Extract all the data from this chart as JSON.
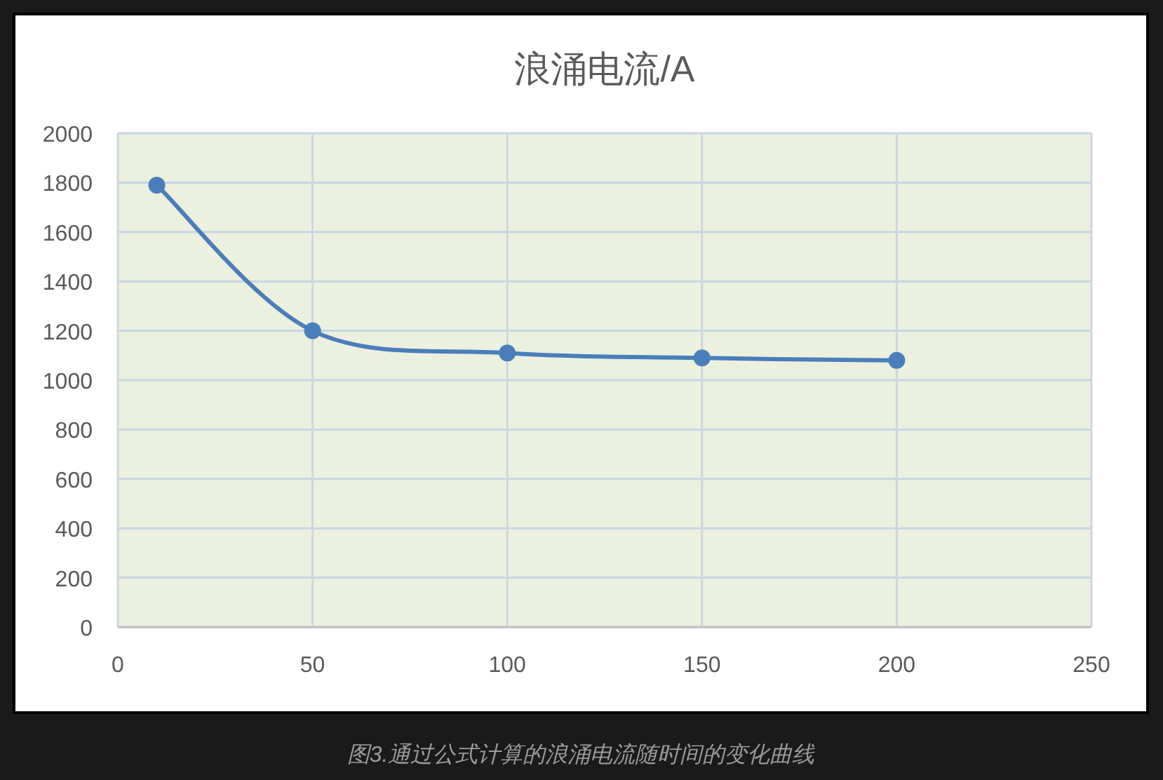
{
  "chart_data": {
    "type": "line",
    "title": "浪涌电流/A",
    "x": [
      10,
      50,
      100,
      150,
      200
    ],
    "series": [
      {
        "color": "#4a7ebb",
        "values": [
          1790,
          1200,
          1110,
          1090,
          1080
        ]
      }
    ],
    "xlim": [
      0,
      250
    ],
    "xticks": [
      0,
      50,
      100,
      150,
      200,
      250
    ],
    "ylim": [
      0,
      2000
    ],
    "yticks": [
      0,
      200,
      400,
      600,
      800,
      1000,
      1200,
      1400,
      1600,
      1800,
      2000
    ],
    "grid": true,
    "marker": "circle",
    "annotations": [
      "图3.通过公式计算的浪涌电流随时间的变化曲线"
    ]
  }
}
